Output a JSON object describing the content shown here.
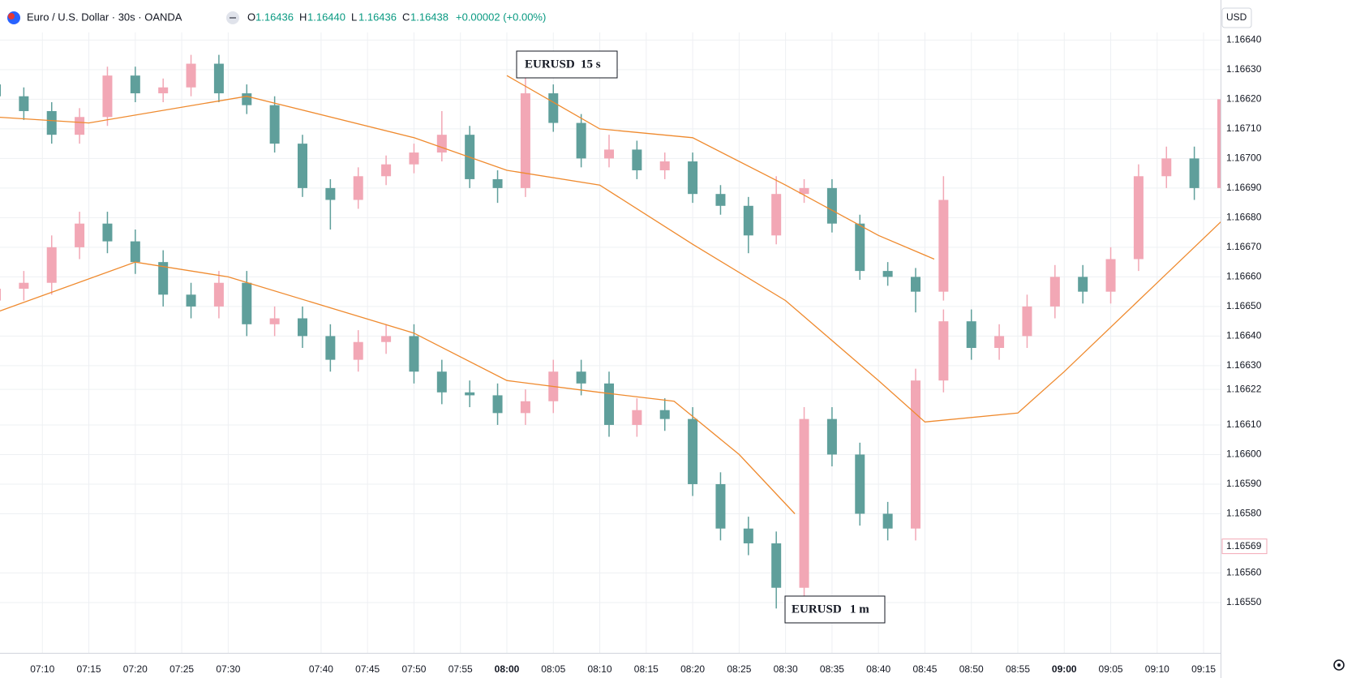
{
  "header": {
    "symbol": "Euro / U.S. Dollar · 30s · OANDA",
    "o_label": "O",
    "o": "1.16436",
    "h_label": "H",
    "h": "1.16440",
    "l_label": "L",
    "l": "1.16436",
    "c_label": "C",
    "c": "1.16438",
    "change": "+0.00002 (+0.00%)",
    "currency": "USD"
  },
  "chart_data": {
    "type": "candlestick",
    "up_color": "#f2a7b5",
    "down_color": "#5f9f9b",
    "grid": true,
    "xlim": [
      "07:05",
      "09:17"
    ],
    "xticks": [
      "07:10",
      "07:15",
      "07:20",
      "07:25",
      "07:30",
      "07:40",
      "07:45",
      "07:50",
      "07:55",
      "08:00",
      "08:05",
      "08:10",
      "08:15",
      "08:20",
      "08:25",
      "08:30",
      "08:35",
      "08:40",
      "08:45",
      "08:50",
      "08:55",
      "09:00",
      "09:05",
      "09:10",
      "09:15"
    ],
    "ylim": [
      1.1653,
      1.16739
    ],
    "yticks": [
      {
        "value": 1.1671,
        "label": "1.16710"
      },
      {
        "value": 1.167,
        "label": "1.16700"
      },
      {
        "value": 1.1669,
        "label": "1.16690"
      },
      {
        "value": 1.1668,
        "label": "1.16680"
      },
      {
        "value": 1.1667,
        "label": "1.16670"
      },
      {
        "value": 1.1666,
        "label": "1.16660"
      },
      {
        "value": 1.1665,
        "label": "1.16650"
      },
      {
        "value": 1.1664,
        "label": "1.16640"
      },
      {
        "value": 1.1663,
        "label": "1.16630"
      },
      1.16622,
      {
        "value": 1.1661,
        "label": "1.16610"
      },
      {
        "value": 1.166,
        "label": "1.16600"
      },
      {
        "value": 1.1659,
        "label": "1.16590"
      },
      {
        "value": 1.1658,
        "label": "1.16580"
      },
      {
        "value": 1.1656,
        "label": "1.16560"
      },
      {
        "value": 1.1655,
        "label": "1.16550"
      }
    ],
    "upper_labels": [
      "1.16640",
      "1.16630",
      "1.16620"
    ],
    "last_price": 1.16569,
    "annotations": [
      {
        "text": "EURUSD",
        "sub": "15 s"
      },
      {
        "text": "EURUSD",
        "sub": "1 m"
      }
    ],
    "series": [
      {
        "x": [
          "07:05",
          "07:08",
          "07:11",
          "07:14",
          "07:17",
          "07:20",
          "07:23",
          "07:26",
          "07:29",
          "07:32",
          "07:35",
          "07:38",
          "07:41",
          "07:44",
          "07:47",
          "07:50",
          "07:53",
          "07:56",
          "07:59",
          "08:02",
          "08:05",
          "08:08",
          "08:11",
          "08:14",
          "08:17",
          "08:20",
          "08:23",
          "08:26",
          "08:29",
          "08:32",
          "08:35",
          "08:38",
          "08:41",
          "08:44",
          "08:47"
        ],
        "open": [
          1.16725,
          1.16721,
          1.16716,
          1.16708,
          1.16714,
          1.16728,
          1.16722,
          1.16724,
          1.16732,
          1.16722,
          1.16718,
          1.16705,
          1.1669,
          1.16686,
          1.16694,
          1.16698,
          1.16702,
          1.16708,
          1.16693,
          1.1669,
          1.16722,
          1.16712,
          1.167,
          1.16703,
          1.16696,
          1.16699,
          1.16688,
          1.16684,
          1.16674,
          1.16688,
          1.1669,
          1.16678,
          1.16662,
          1.1666,
          1.16655
        ],
        "high": [
          1.16728,
          1.16724,
          1.16719,
          1.16717,
          1.16731,
          1.16731,
          1.16727,
          1.16735,
          1.16735,
          1.16725,
          1.16721,
          1.16708,
          1.16693,
          1.16697,
          1.16701,
          1.16705,
          1.16716,
          1.16711,
          1.16696,
          1.16736,
          1.16725,
          1.16715,
          1.16708,
          1.16706,
          1.16702,
          1.16702,
          1.16691,
          1.16687,
          1.16694,
          1.16693,
          1.16693,
          1.16681,
          1.16665,
          1.16663,
          1.16694
        ],
        "low": [
          1.16718,
          1.16713,
          1.16705,
          1.16705,
          1.16711,
          1.16719,
          1.16719,
          1.16721,
          1.16719,
          1.16715,
          1.16702,
          1.16687,
          1.16676,
          1.16683,
          1.16691,
          1.16695,
          1.16699,
          1.1669,
          1.16685,
          1.16687,
          1.16709,
          1.16697,
          1.16697,
          1.16693,
          1.16693,
          1.16685,
          1.16681,
          1.16668,
          1.16671,
          1.16685,
          1.16675,
          1.16659,
          1.16657,
          1.16648,
          1.16652
        ],
        "close": [
          1.16721,
          1.16716,
          1.16708,
          1.16714,
          1.16728,
          1.16722,
          1.16724,
          1.16732,
          1.16722,
          1.16718,
          1.16705,
          1.1669,
          1.16686,
          1.16694,
          1.16698,
          1.16702,
          1.16708,
          1.16693,
          1.1669,
          1.16722,
          1.16712,
          1.167,
          1.16703,
          1.16696,
          1.16699,
          1.16688,
          1.16684,
          1.16674,
          1.16688,
          1.1669,
          1.16678,
          1.16662,
          1.1666,
          1.16655,
          1.16686
        ]
      },
      {
        "x": [
          "07:05",
          "07:08",
          "07:11",
          "07:14",
          "07:17",
          "07:20",
          "07:23",
          "07:26",
          "07:29",
          "07:32",
          "07:35",
          "07:38",
          "07:41",
          "07:44",
          "07:47",
          "07:50",
          "07:53",
          "07:56",
          "07:59",
          "08:02",
          "08:05",
          "08:08",
          "08:11",
          "08:14",
          "08:17",
          "08:20",
          "08:23",
          "08:26",
          "08:29",
          "08:32",
          "08:35",
          "08:38",
          "08:41",
          "08:44",
          "08:47",
          "08:50",
          "08:53",
          "08:56",
          "08:59",
          "09:02",
          "09:05",
          "09:08",
          "09:11",
          "09:14",
          "09:17"
        ],
        "open": [
          1.16652,
          1.16656,
          1.16658,
          1.1667,
          1.16678,
          1.16672,
          1.16665,
          1.16654,
          1.1665,
          1.16658,
          1.16644,
          1.16646,
          1.1664,
          1.16632,
          1.16638,
          1.1664,
          1.16628,
          1.16621,
          1.1662,
          1.16614,
          1.16618,
          1.16628,
          1.16624,
          1.1661,
          1.16615,
          1.16612,
          1.1659,
          1.16575,
          1.1657,
          1.16555,
          1.16612,
          1.166,
          1.1658,
          1.16575,
          1.16625,
          1.16645,
          1.16636,
          1.1664,
          1.1665,
          1.1666,
          1.16655,
          1.16666,
          1.16694,
          1.167,
          1.1669
        ],
        "high": [
          1.1666,
          1.16662,
          1.16674,
          1.16682,
          1.16682,
          1.16676,
          1.16669,
          1.16658,
          1.16662,
          1.16662,
          1.1665,
          1.1665,
          1.16644,
          1.16642,
          1.16644,
          1.16644,
          1.16632,
          1.16625,
          1.16624,
          1.16622,
          1.16632,
          1.16632,
          1.16628,
          1.16619,
          1.16619,
          1.16616,
          1.16594,
          1.16579,
          1.16574,
          1.16616,
          1.16616,
          1.16604,
          1.16584,
          1.16629,
          1.16649,
          1.16649,
          1.16644,
          1.16654,
          1.16664,
          1.16664,
          1.1667,
          1.16698,
          1.16704,
          1.16704,
          1.16724
        ],
        "low": [
          1.16648,
          1.16652,
          1.16654,
          1.16666,
          1.16668,
          1.16661,
          1.1665,
          1.16646,
          1.16646,
          1.1664,
          1.1664,
          1.16636,
          1.16628,
          1.16628,
          1.16634,
          1.16624,
          1.16617,
          1.16616,
          1.1661,
          1.1661,
          1.16614,
          1.1662,
          1.16606,
          1.16606,
          1.16608,
          1.16586,
          1.16571,
          1.16566,
          1.16548,
          1.16551,
          1.16596,
          1.16576,
          1.16571,
          1.16571,
          1.16621,
          1.16632,
          1.16632,
          1.16636,
          1.16646,
          1.16651,
          1.16651,
          1.16662,
          1.1669,
          1.16686,
          1.16686
        ],
        "close": [
          1.16656,
          1.16658,
          1.1667,
          1.16678,
          1.16672,
          1.16665,
          1.16654,
          1.1665,
          1.16658,
          1.16644,
          1.16646,
          1.1664,
          1.16632,
          1.16638,
          1.1664,
          1.16628,
          1.16621,
          1.1662,
          1.16614,
          1.16618,
          1.16628,
          1.16624,
          1.1661,
          1.16615,
          1.16612,
          1.1659,
          1.16575,
          1.1657,
          1.16555,
          1.16612,
          1.166,
          1.1658,
          1.16575,
          1.16625,
          1.16645,
          1.16636,
          1.1664,
          1.1665,
          1.1666,
          1.16655,
          1.16666,
          1.16694,
          1.167,
          1.1669,
          1.1672
        ]
      }
    ],
    "lines": [
      {
        "color": "#ef8a2e",
        "x": [
          "07:05",
          "07:15",
          "07:32",
          "07:50",
          "08:00",
          "08:10",
          "08:20",
          "08:30",
          "08:40",
          "08:45",
          "08:55",
          "09:00",
          "09:10",
          "09:17"
        ],
        "values": [
          1.16714,
          1.16712,
          1.16721,
          1.16707,
          1.16696,
          1.16691,
          1.16671,
          1.16652,
          1.16625,
          1.16611,
          1.16614,
          1.16628,
          1.16658,
          1.16679
        ]
      },
      {
        "color": "#ef8a2e",
        "x": [
          "08:00",
          "08:10",
          "08:20",
          "08:30",
          "08:40",
          "08:46"
        ],
        "values": [
          1.16728,
          1.1671,
          1.16707,
          1.16691,
          1.16674,
          1.16666
        ]
      },
      {
        "color": "#ef8a2e",
        "x": [
          "07:05",
          "07:20",
          "07:30",
          "07:50",
          "08:00",
          "08:10",
          "08:18",
          "08:25",
          "08:31"
        ],
        "values": [
          1.16648,
          1.16665,
          1.1666,
          1.16641,
          1.16625,
          1.16621,
          1.16618,
          1.166,
          1.1658
        ]
      }
    ]
  }
}
